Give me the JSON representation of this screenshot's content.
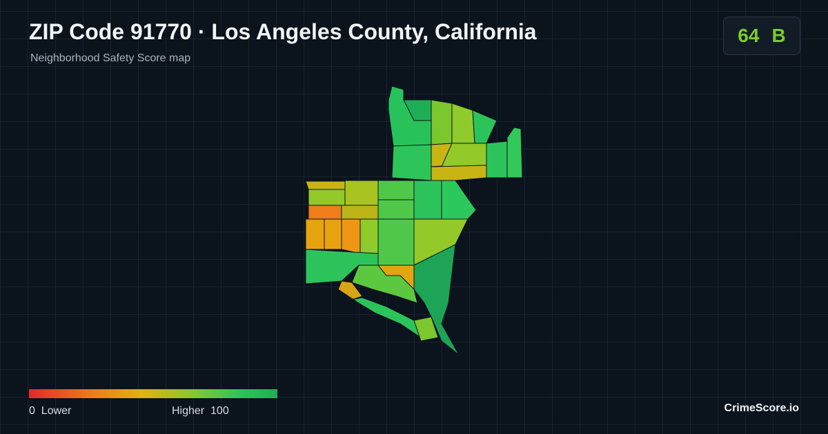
{
  "header": {
    "title": "ZIP Code 91770 · Los Angeles County, California",
    "subtitle": "Neighborhood Safety Score map"
  },
  "score": {
    "value": 64,
    "grade": "B"
  },
  "legend": {
    "min": 0,
    "min_label": "Lower",
    "max_label": "Higher",
    "max": 100
  },
  "brand": "CrimeScore.io"
}
